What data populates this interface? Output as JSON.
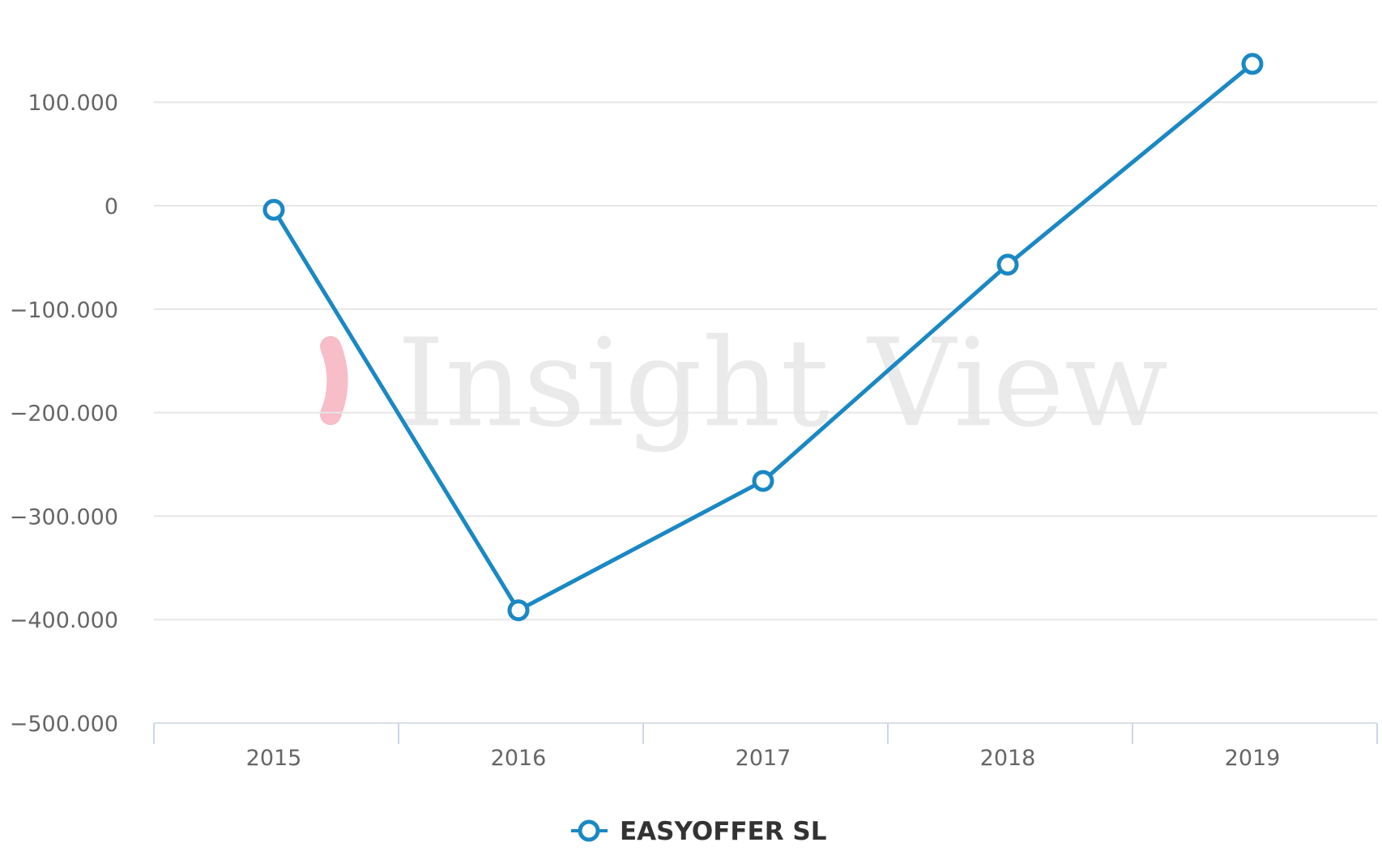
{
  "chart_data": {
    "type": "line",
    "title": "",
    "xlabel": "",
    "ylabel": "",
    "categories": [
      "2015",
      "2016",
      "2017",
      "2018",
      "2019"
    ],
    "series": [
      {
        "name": "EASYOFFER SL",
        "color": "#1a88c4",
        "values": [
          -4000,
          -391000,
          -266000,
          -57000,
          137000
        ]
      }
    ],
    "yticks": [
      100000,
      0,
      -100000,
      -200000,
      -300000,
      -400000,
      -500000
    ],
    "ytick_labels": [
      "100.000",
      "0",
      "−100.000",
      "−200.000",
      "−300.000",
      "−400.000",
      "−500.000"
    ],
    "ylim": [
      -500000,
      145000
    ],
    "grid": true,
    "legend_position": "bottom-center",
    "markers": "hollow-circle"
  },
  "watermark": {
    "text": "Insight View",
    "chevron_color": "#f4a7b5"
  },
  "legend": {
    "label": "EASYOFFER SL"
  }
}
